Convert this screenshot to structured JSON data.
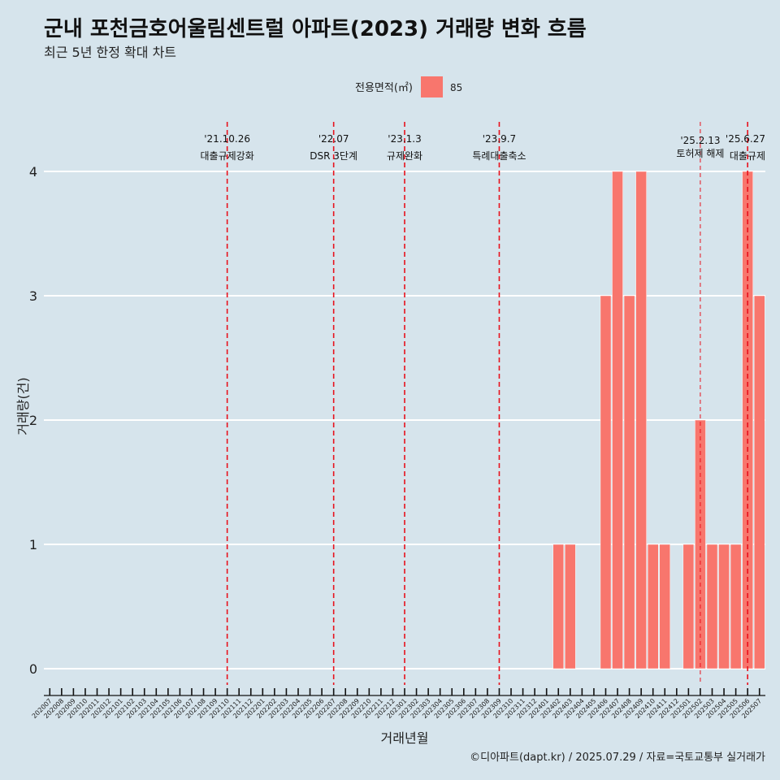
{
  "title": "군내 포천금호어울림센트럴 아파트(2023) 거래량 변화 흐름",
  "subtitle": "최근 5년 한정 확대 차트",
  "caption": "©디아파트(dapt.kr) / 2025.07.29 / 자료=국토교통부 실거래가",
  "colors": {
    "bar": "#f8766d",
    "event_line": "#e8111c",
    "background": "#d6e4ec",
    "grid": "#ffffff"
  },
  "chart_data": {
    "type": "bar",
    "xlabel": "거래년월",
    "ylabel": "거래량(건)",
    "ylim": [
      0,
      4
    ],
    "yticks": [
      0,
      1,
      2,
      3,
      4
    ],
    "grid": true,
    "legend": {
      "title": "전용면적(㎡)",
      "placement": "top-center",
      "entries": [
        "85"
      ]
    },
    "categories": [
      "202007",
      "202008",
      "202009",
      "202010",
      "202011",
      "202012",
      "202101",
      "202102",
      "202103",
      "202104",
      "202105",
      "202106",
      "202107",
      "202108",
      "202109",
      "202110",
      "202111",
      "202112",
      "202201",
      "202202",
      "202203",
      "202204",
      "202205",
      "202206",
      "202207",
      "202208",
      "202209",
      "202210",
      "202211",
      "202212",
      "202301",
      "202302",
      "202303",
      "202304",
      "202305",
      "202306",
      "202307",
      "202308",
      "202309",
      "202310",
      "202311",
      "202312",
      "202401",
      "202402",
      "202403",
      "202404",
      "202405",
      "202406",
      "202407",
      "202408",
      "202409",
      "202410",
      "202411",
      "202412",
      "202501",
      "202502",
      "202503",
      "202504",
      "202505",
      "202506",
      "202507"
    ],
    "series": [
      {
        "name": "85",
        "values": [
          0,
          0,
          0,
          0,
          0,
          0,
          0,
          0,
          0,
          0,
          0,
          0,
          0,
          0,
          0,
          0,
          0,
          0,
          0,
          0,
          0,
          0,
          0,
          0,
          0,
          0,
          0,
          0,
          0,
          0,
          0,
          0,
          0,
          0,
          0,
          0,
          0,
          0,
          0,
          0,
          0,
          0,
          0,
          1,
          1,
          0,
          0,
          3,
          4,
          3,
          4,
          1,
          1,
          0,
          1,
          2,
          1,
          1,
          1,
          4,
          3
        ]
      }
    ],
    "events": [
      {
        "category": "202110",
        "date": "'21.10.26",
        "label": "대출규제강화",
        "style": "major"
      },
      {
        "category": "202207",
        "date": "'22.07",
        "label": "DSR 3단계",
        "style": "major"
      },
      {
        "category": "202301",
        "date": "'23.1.3",
        "label": "규제완화",
        "style": "major"
      },
      {
        "category": "202309",
        "date": "'23.9.7",
        "label": "특례대출축소",
        "style": "major"
      },
      {
        "category": "202502",
        "date": "'25.2.13",
        "label": "토허제 해제",
        "style": "minor"
      },
      {
        "category": "202506",
        "date": "'25.6.27",
        "label": "대출규제",
        "style": "major"
      }
    ]
  }
}
